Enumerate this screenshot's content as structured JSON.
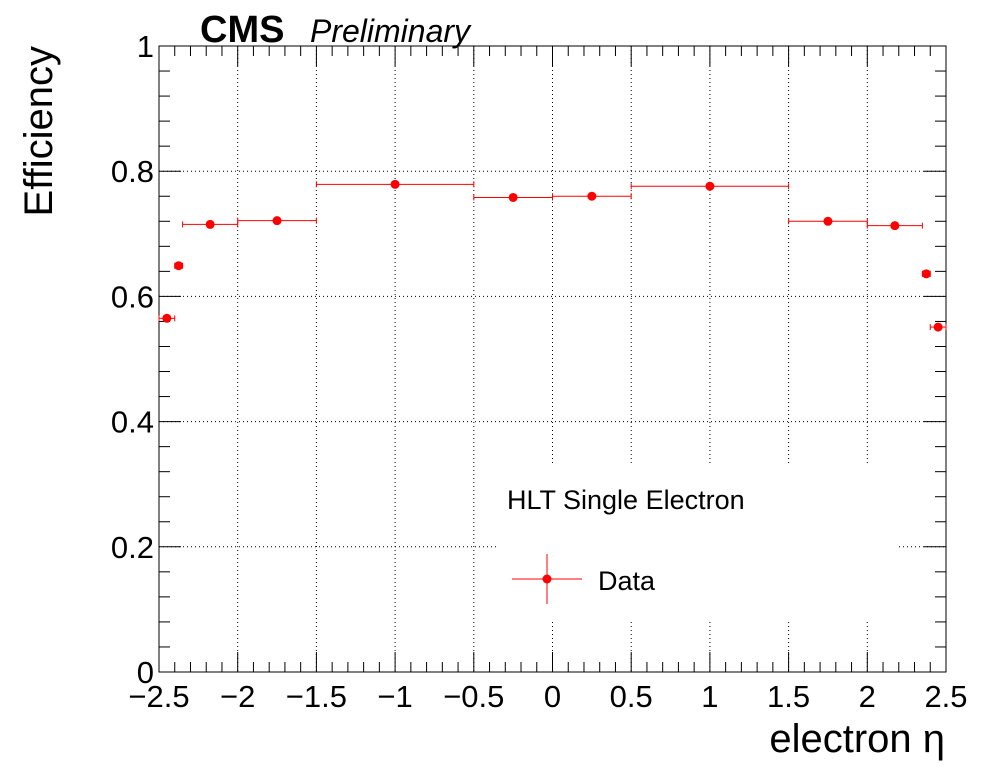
{
  "header": {
    "experiment": "CMS",
    "status": "Preliminary"
  },
  "chart_data": {
    "type": "scatter",
    "xlabel": "electron η",
    "ylabel": "Efficiency",
    "xlim": [
      -2.5,
      2.5
    ],
    "ylim": [
      0,
      1.0
    ],
    "grid": true,
    "x_ticks": [
      "−2.5",
      "−2",
      "−1.5",
      "−1",
      "−0.5",
      "0",
      "0.5",
      "1",
      "1.5",
      "2",
      "2.5"
    ],
    "y_ticks": [
      "0",
      "0.2",
      "0.4",
      "0.6",
      "0.8",
      "1"
    ],
    "legend": {
      "header": "HLT Single Electron",
      "entries": [
        "Data"
      ],
      "placement": "bottom-center"
    },
    "series": [
      {
        "name": "Data",
        "color": "#ff0000",
        "points": [
          {
            "x": -2.45,
            "xerr": 0.05,
            "y": 0.565,
            "yerr": 0.003
          },
          {
            "x": -2.375,
            "xerr": 0.025,
            "y": 0.649,
            "yerr": 0.003
          },
          {
            "x": -2.175,
            "xerr": 0.175,
            "y": 0.715,
            "yerr": 0.002
          },
          {
            "x": -1.75,
            "xerr": 0.25,
            "y": 0.721,
            "yerr": 0.002
          },
          {
            "x": -1.0,
            "xerr": 0.5,
            "y": 0.779,
            "yerr": 0.001
          },
          {
            "x": -0.25,
            "xerr": 0.25,
            "y": 0.758,
            "yerr": 0.001
          },
          {
            "x": 0.25,
            "xerr": 0.25,
            "y": 0.76,
            "yerr": 0.001
          },
          {
            "x": 1.0,
            "xerr": 0.5,
            "y": 0.776,
            "yerr": 0.001
          },
          {
            "x": 1.75,
            "xerr": 0.25,
            "y": 0.72,
            "yerr": 0.002
          },
          {
            "x": 2.175,
            "xerr": 0.175,
            "y": 0.713,
            "yerr": 0.002
          },
          {
            "x": 2.375,
            "xerr": 0.025,
            "y": 0.636,
            "yerr": 0.003
          },
          {
            "x": 2.45,
            "xerr": 0.05,
            "y": 0.551,
            "yerr": 0.003
          }
        ]
      }
    ]
  }
}
